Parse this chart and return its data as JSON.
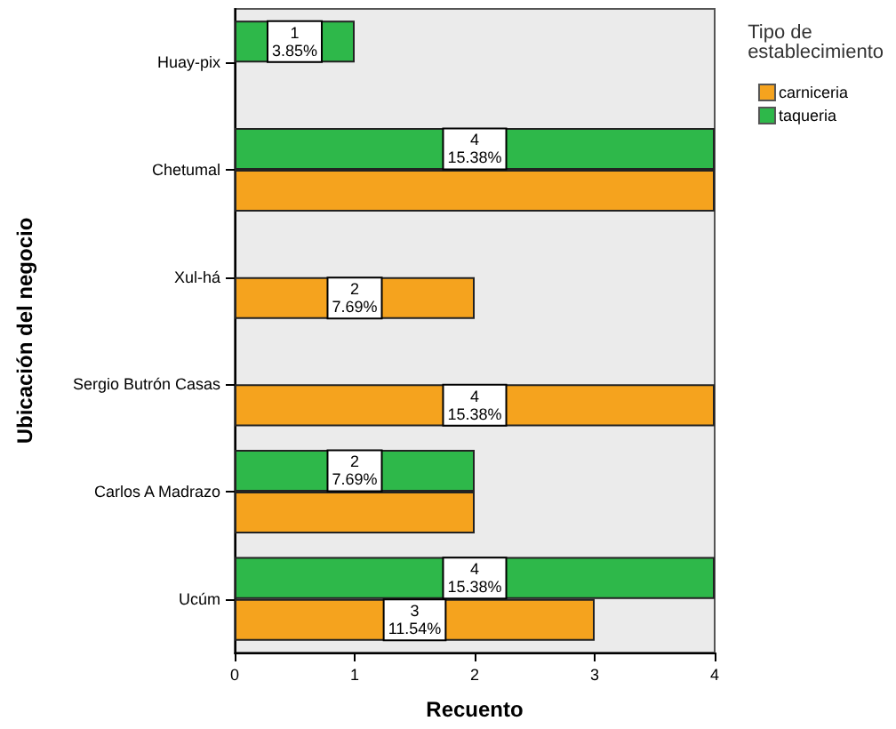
{
  "chart_data": {
    "type": "bar",
    "orientation": "horizontal",
    "xlabel": "Recuento",
    "ylabel": "Ubicación del negocio",
    "legend_title": "Tipo de establecimiento",
    "legend": "top right",
    "categories": [
      "Huay-pix",
      "Chetumal",
      "Xul-há",
      "Sergio Butrón Casas",
      "Carlos A Madrazo",
      "Ucúm"
    ],
    "series": [
      {
        "name": "carniceria",
        "color": "#f5a31e",
        "values": [
          null,
          4,
          2,
          4,
          2,
          3
        ],
        "value_labels": [
          null,
          null,
          "2\n7.69%",
          "4\n15.38%",
          null,
          "3\n11.54%"
        ]
      },
      {
        "name": "taqueria",
        "color": "#2eb84a",
        "values": [
          1,
          4,
          null,
          null,
          2,
          4
        ],
        "value_labels": [
          "1\n3.85%",
          "4\n15.38%",
          null,
          null,
          "2\n7.69%",
          "4\n15.38%"
        ]
      }
    ],
    "xlim": [
      0,
      4
    ],
    "xticks": [
      0,
      1,
      2,
      3,
      4
    ]
  }
}
